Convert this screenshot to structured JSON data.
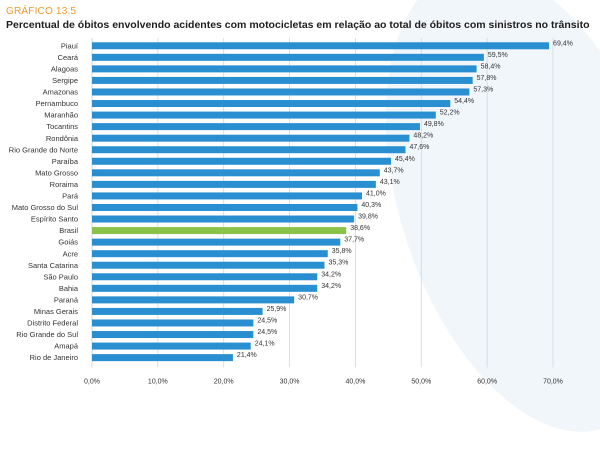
{
  "figure_label": "GRÁFICO 13.5",
  "title": "Percentual de óbitos envolvendo acidentes com motocicletas em relação ao total de óbitos com sinistros no trânsito",
  "colors": {
    "bar": "#2a8fd1",
    "highlight": "#8bc34a",
    "grid": "#cfd8e0",
    "figure_label": "#f29a2e"
  },
  "chart_data": {
    "type": "bar",
    "orientation": "horizontal",
    "title": "Percentual de óbitos envolvendo acidentes com motocicletas em relação ao total de óbitos com sinistros no trânsito",
    "xlabel": "",
    "ylabel": "",
    "xlim": [
      0,
      70
    ],
    "grid": true,
    "xticks": [
      "0,0%",
      "10,0%",
      "20,0%",
      "30,0%",
      "40,0%",
      "50,0%",
      "60,0%",
      "70,0%"
    ],
    "xtick_values": [
      0,
      10,
      20,
      30,
      40,
      50,
      60,
      70
    ],
    "highlight_category": "Brasil",
    "categories": [
      "Piauí",
      "Ceará",
      "Alagoas",
      "Sergipe",
      "Amazonas",
      "Pernambuco",
      "Maranhão",
      "Tocantins",
      "Rondônia",
      "Rio Grande do Norte",
      "Paraíba",
      "Mato Grosso",
      "Roraima",
      "Pará",
      "Mato Grosso do Sul",
      "Espírito Santo",
      "Brasil",
      "Goiás",
      "Acre",
      "Santa Catarina",
      "São Paulo",
      "Bahia",
      "Paraná",
      "Minas Gerais",
      "Distrito Federal",
      "Rio Grande do Sul",
      "Amapá",
      "Rio de Janeiro"
    ],
    "values": [
      69.4,
      59.5,
      58.4,
      57.8,
      57.3,
      54.4,
      52.2,
      49.8,
      48.2,
      47.6,
      45.4,
      43.7,
      43.1,
      41.0,
      40.3,
      39.8,
      38.6,
      37.7,
      35.8,
      35.3,
      34.2,
      34.2,
      30.7,
      25.9,
      24.5,
      24.5,
      24.1,
      21.4
    ],
    "value_labels": [
      "69,4%",
      "59,5%",
      "58,4%",
      "57,8%",
      "57,3%",
      "54,4%",
      "52,2%",
      "49,8%",
      "48,2%",
      "47,6%",
      "45,4%",
      "43,7%",
      "43,1%",
      "41,0%",
      "40,3%",
      "39,8%",
      "38,6%",
      "37,7%",
      "35,8%",
      "35,3%",
      "34,2%",
      "34,2%",
      "30,7%",
      "25,9%",
      "24,5%",
      "24,5%",
      "24,1%",
      "21,4%"
    ]
  }
}
